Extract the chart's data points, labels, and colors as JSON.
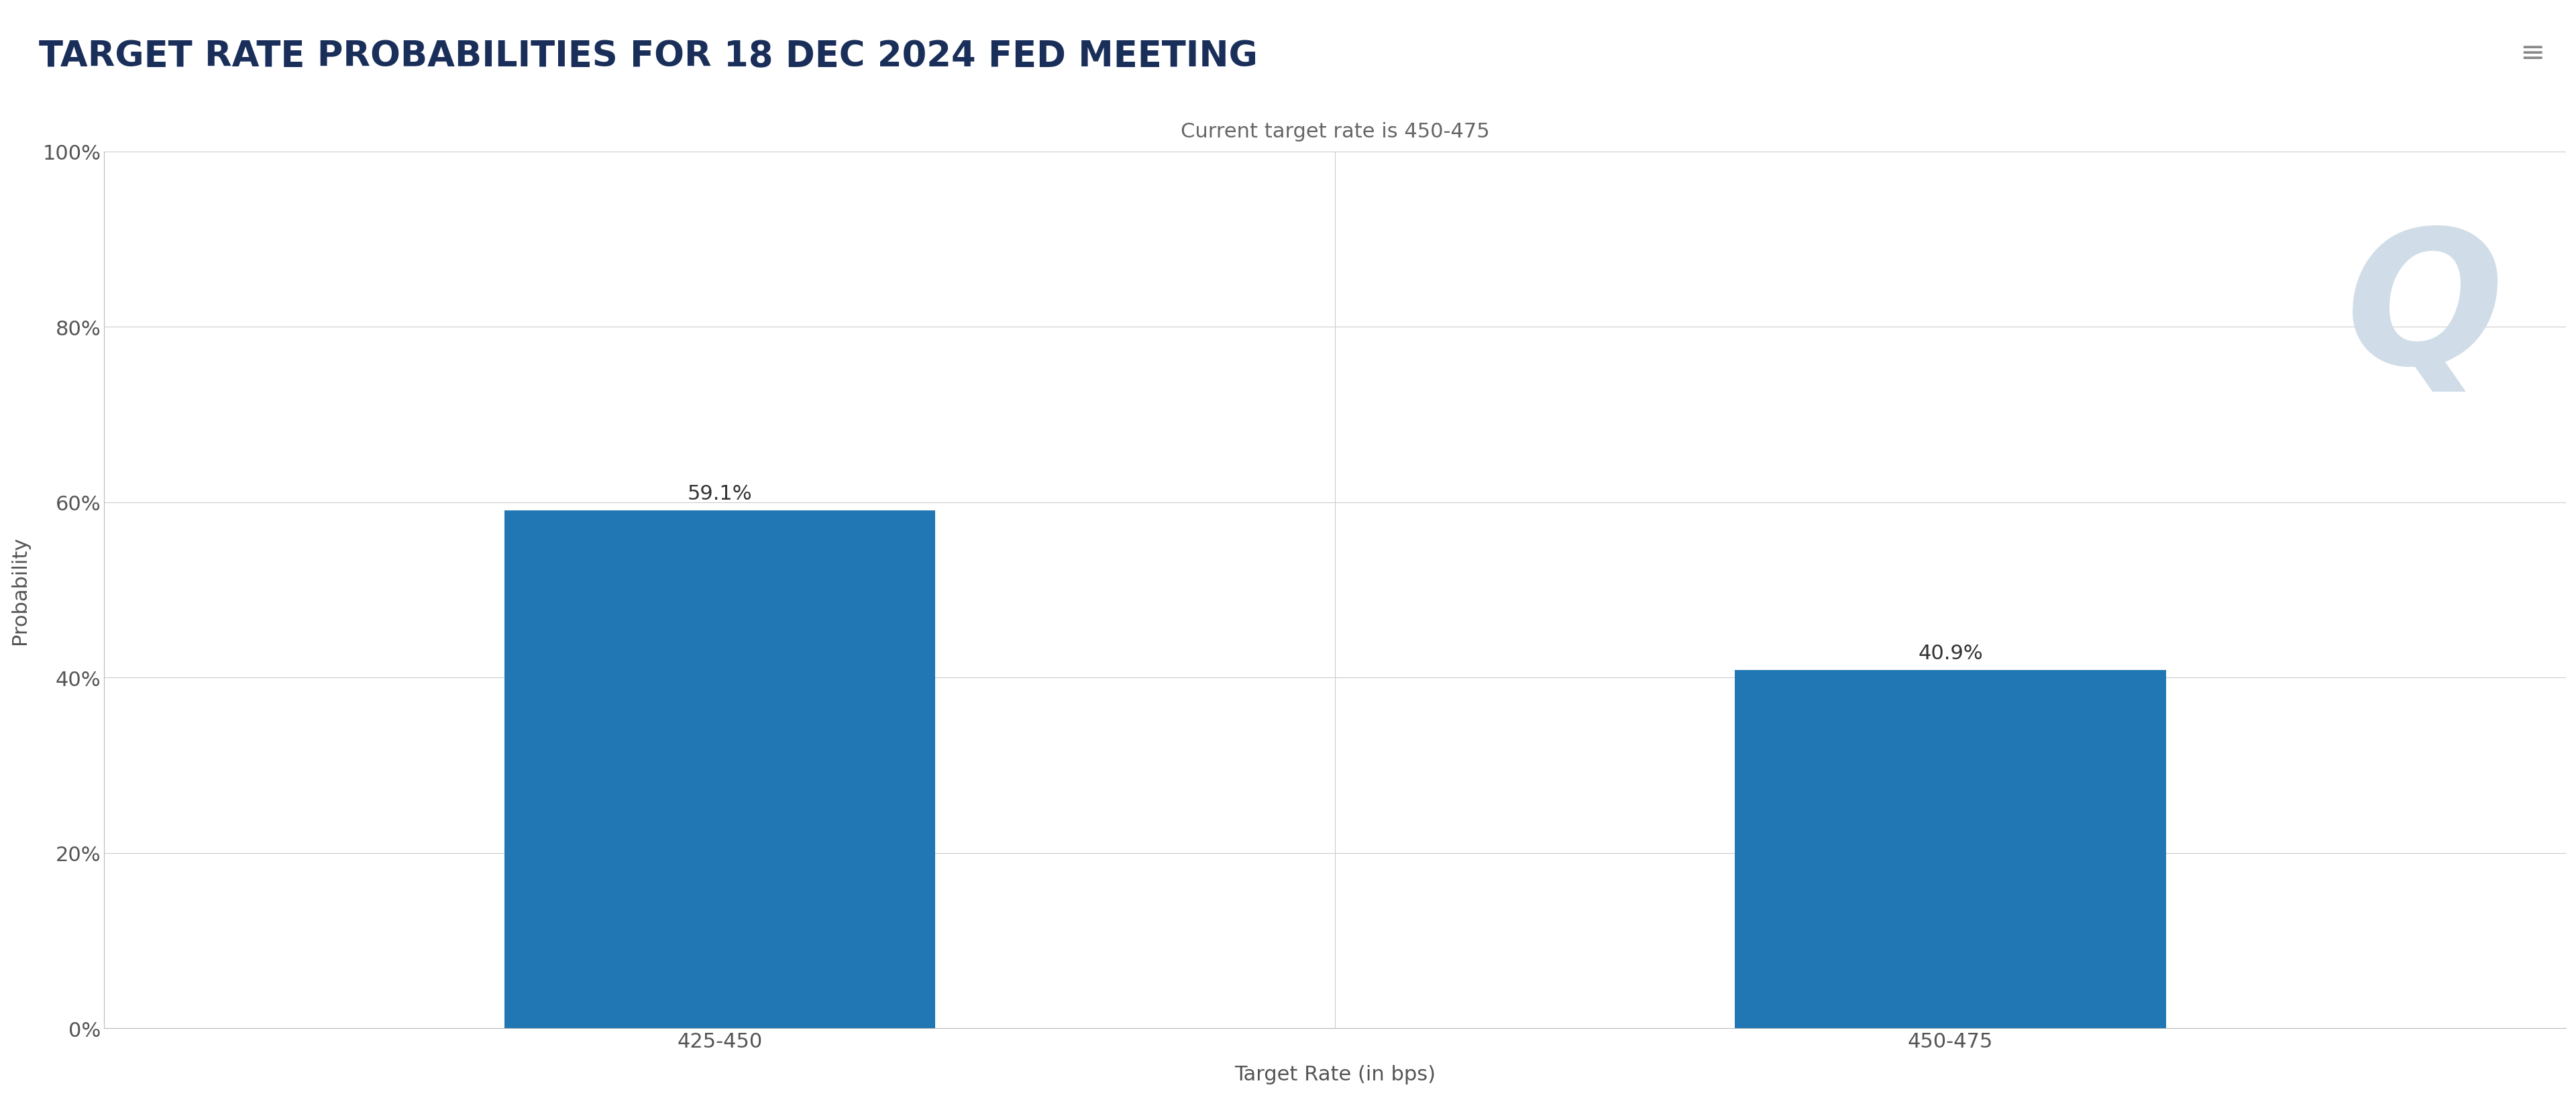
{
  "title": "TARGET RATE PROBABILITIES FOR 18 DEC 2024 FED MEETING",
  "subtitle": "Current target rate is 450-475",
  "categories": [
    "425-450",
    "450-475"
  ],
  "values": [
    59.1,
    40.9
  ],
  "bar_color": "#2077B4",
  "xlabel": "Target Rate (in bps)",
  "ylabel": "Probability",
  "yticks": [
    0,
    20,
    40,
    60,
    80,
    100
  ],
  "ytick_labels": [
    "0%",
    "20%",
    "40%",
    "60%",
    "80%",
    "100%"
  ],
  "ylim": [
    0,
    100
  ],
  "background_color": "#ffffff",
  "grid_color": "#cccccc",
  "title_color": "#1a2e5a",
  "subtitle_color": "#666666",
  "title_fontsize": 38,
  "subtitle_fontsize": 22,
  "xlabel_fontsize": 22,
  "ylabel_fontsize": 22,
  "tick_fontsize": 22,
  "bar_label_fontsize": 22,
  "watermark_text": "Q",
  "watermark_color": "#d0dde8",
  "bar_positions": [
    1,
    3
  ],
  "xlim": [
    0,
    4
  ],
  "xtick_positions": [
    1,
    3
  ],
  "vline_positions": [
    0,
    2,
    4
  ]
}
